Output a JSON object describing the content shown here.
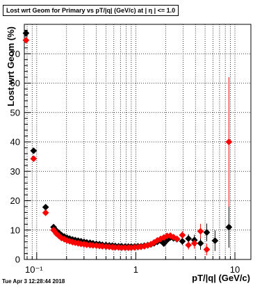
{
  "chart_data": {
    "type": "scatter",
    "title": "Lost wrt Geom for Primary vs pT/|q| (GeV/c) at |  η | <= 1.0",
    "xlabel": "pT/|q| (GeV/c)",
    "ylabel": "Lost wrt Geom (%)",
    "x_scale": "log",
    "xlim": [
      0.075,
      14.5
    ],
    "ylim": [
      0,
      80
    ],
    "grid": true,
    "x_tick_labels": [
      {
        "value": 0.1,
        "label": "10⁻¹"
      },
      {
        "value": 1,
        "label": "1"
      },
      {
        "value": 10,
        "label": "10"
      }
    ],
    "y_ticks": [
      0,
      10,
      20,
      30,
      40,
      50,
      60,
      70
    ],
    "series": [
      {
        "color": "#000000",
        "marker": "diamond",
        "points": [
          {
            "x": 0.078,
            "y": 77.0,
            "xerr": 0.0024,
            "yerr": 0.6
          },
          {
            "x": 0.093,
            "y": 37.0,
            "xerr": 0.0032,
            "yerr": 0.8
          },
          {
            "x": 0.123,
            "y": 17.8,
            "xerr": 0.005,
            "yerr": 0.6
          },
          {
            "x": 0.148,
            "y": 11.0,
            "xerr": 0.005,
            "yerr": 0.4
          },
          {
            "x": 0.158,
            "y": 9.8
          },
          {
            "x": 0.168,
            "y": 9.0
          },
          {
            "x": 0.178,
            "y": 8.3
          },
          {
            "x": 0.19,
            "y": 7.8
          },
          {
            "x": 0.202,
            "y": 7.4
          },
          {
            "x": 0.215,
            "y": 7.1
          },
          {
            "x": 0.23,
            "y": 6.8
          },
          {
            "x": 0.245,
            "y": 6.6
          },
          {
            "x": 0.262,
            "y": 6.4
          },
          {
            "x": 0.28,
            "y": 6.2
          },
          {
            "x": 0.3,
            "y": 6.0
          },
          {
            "x": 0.32,
            "y": 5.8
          },
          {
            "x": 0.345,
            "y": 5.7
          },
          {
            "x": 0.37,
            "y": 5.5
          },
          {
            "x": 0.4,
            "y": 5.3
          },
          {
            "x": 0.43,
            "y": 5.2
          },
          {
            "x": 0.46,
            "y": 5.0
          },
          {
            "x": 0.5,
            "y": 4.9
          },
          {
            "x": 0.54,
            "y": 4.8
          },
          {
            "x": 0.58,
            "y": 4.7
          },
          {
            "x": 0.62,
            "y": 4.6
          },
          {
            "x": 0.67,
            "y": 4.5
          },
          {
            "x": 0.72,
            "y": 4.5
          },
          {
            "x": 0.78,
            "y": 4.4
          },
          {
            "x": 0.84,
            "y": 4.4
          },
          {
            "x": 0.9,
            "y": 4.4
          },
          {
            "x": 0.97,
            "y": 4.4
          },
          {
            "x": 1.05,
            "y": 4.5
          },
          {
            "x": 1.13,
            "y": 4.5
          },
          {
            "x": 1.22,
            "y": 4.7
          },
          {
            "x": 1.32,
            "y": 4.9
          },
          {
            "x": 1.42,
            "y": 5.1
          },
          {
            "x": 1.53,
            "y": 5.5
          },
          {
            "x": 1.65,
            "y": 6.0,
            "yerr": 0.5
          },
          {
            "x": 1.78,
            "y": 6.4,
            "yerr": 0.6
          },
          {
            "x": 1.92,
            "y": 5.4,
            "yerr": 0.7
          },
          {
            "x": 2.07,
            "y": 6.6,
            "yerr": 0.8
          },
          {
            "x": 2.23,
            "y": 7.5,
            "yerr": 0.9
          },
          {
            "x": 2.4,
            "y": 7.2,
            "yerr": 1.0
          },
          {
            "x": 2.6,
            "y": 6.9,
            "yerr": 1.1
          },
          {
            "x": 2.95,
            "y": 6.2,
            "xerr": 0.18,
            "yerr": 1.3
          },
          {
            "x": 3.4,
            "y": 7.1,
            "xerr": 0.22,
            "yerr": 1.5
          },
          {
            "x": 3.9,
            "y": 6.6,
            "xerr": 0.26,
            "yerr": 1.8
          },
          {
            "x": 4.5,
            "y": 5.5,
            "xerr": 0.3,
            "yerr": 2.2
          },
          {
            "x": 5.2,
            "y": 9.2,
            "xerr": 0.35,
            "yerr": 3.0
          },
          {
            "x": 6.3,
            "y": 6.4,
            "xerr": 0.45,
            "yerr": 3.5
          },
          {
            "x": 8.7,
            "y": 11.0,
            "xerr": 0.6,
            "yerr": 7.0
          }
        ]
      },
      {
        "color": "#ff0000",
        "marker": "diamond",
        "points": [
          {
            "x": 0.078,
            "y": 74.6,
            "xerr": 0.0024,
            "yerr": 0.6
          },
          {
            "x": 0.093,
            "y": 34.3,
            "xerr": 0.0032,
            "yerr": 0.8
          },
          {
            "x": 0.123,
            "y": 15.9,
            "xerr": 0.005,
            "yerr": 0.6
          },
          {
            "x": 0.148,
            "y": 10.0,
            "xerr": 0.005,
            "yerr": 0.4
          },
          {
            "x": 0.158,
            "y": 8.8
          },
          {
            "x": 0.168,
            "y": 8.0
          },
          {
            "x": 0.178,
            "y": 7.3
          },
          {
            "x": 0.19,
            "y": 6.9
          },
          {
            "x": 0.202,
            "y": 6.5
          },
          {
            "x": 0.215,
            "y": 6.2
          },
          {
            "x": 0.23,
            "y": 5.9
          },
          {
            "x": 0.245,
            "y": 5.7
          },
          {
            "x": 0.262,
            "y": 5.5
          },
          {
            "x": 0.28,
            "y": 5.3
          },
          {
            "x": 0.3,
            "y": 5.2
          },
          {
            "x": 0.32,
            "y": 5.0
          },
          {
            "x": 0.345,
            "y": 4.9
          },
          {
            "x": 0.37,
            "y": 4.8
          },
          {
            "x": 0.4,
            "y": 4.7
          },
          {
            "x": 0.43,
            "y": 4.6
          },
          {
            "x": 0.46,
            "y": 4.5
          },
          {
            "x": 0.5,
            "y": 4.4
          },
          {
            "x": 0.54,
            "y": 4.3
          },
          {
            "x": 0.58,
            "y": 4.2
          },
          {
            "x": 0.62,
            "y": 4.1
          },
          {
            "x": 0.67,
            "y": 4.1
          },
          {
            "x": 0.72,
            "y": 4.0
          },
          {
            "x": 0.78,
            "y": 4.0
          },
          {
            "x": 0.84,
            "y": 4.0
          },
          {
            "x": 0.9,
            "y": 4.0
          },
          {
            "x": 0.97,
            "y": 4.1
          },
          {
            "x": 1.05,
            "y": 4.2
          },
          {
            "x": 1.13,
            "y": 4.3
          },
          {
            "x": 1.22,
            "y": 4.5
          },
          {
            "x": 1.32,
            "y": 4.8
          },
          {
            "x": 1.42,
            "y": 5.2
          },
          {
            "x": 1.53,
            "y": 5.8
          },
          {
            "x": 1.65,
            "y": 6.5,
            "yerr": 0.5
          },
          {
            "x": 1.78,
            "y": 7.0,
            "yerr": 0.6
          },
          {
            "x": 1.92,
            "y": 7.5,
            "yerr": 0.7
          },
          {
            "x": 2.07,
            "y": 8.0,
            "yerr": 0.8
          },
          {
            "x": 2.23,
            "y": 8.1,
            "yerr": 0.9
          },
          {
            "x": 2.4,
            "y": 7.6,
            "yerr": 1.0
          },
          {
            "x": 2.6,
            "y": 7.0,
            "yerr": 1.1
          },
          {
            "x": 2.95,
            "y": 8.3,
            "xerr": 0.18,
            "yerr": 1.3
          },
          {
            "x": 3.4,
            "y": 4.9,
            "xerr": 0.22,
            "yerr": 1.5
          },
          {
            "x": 3.9,
            "y": 5.5,
            "xerr": 0.26,
            "yerr": 1.8
          },
          {
            "x": 4.5,
            "y": 9.6,
            "xerr": 0.3,
            "yerr": 2.5
          },
          {
            "x": 5.2,
            "y": 3.4,
            "xerr": 0.35,
            "yerr": 2.0
          },
          {
            "x": 8.7,
            "y": 40.0,
            "xerr": 0.6,
            "yerr": 22.0
          }
        ]
      }
    ]
  },
  "footer": {
    "timestamp": "Tue Apr  3 12:28:44 2018"
  }
}
